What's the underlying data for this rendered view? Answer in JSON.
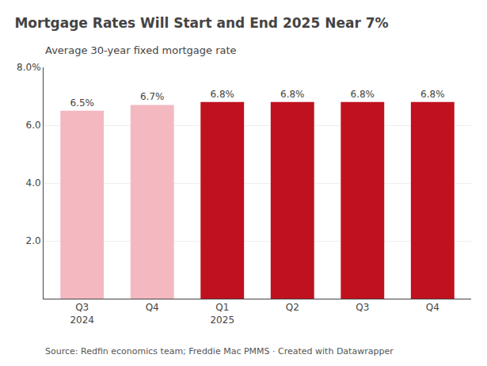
{
  "chart_data": {
    "type": "bar",
    "title": "Mortgage Rates Will Start and End 2025 Near 7%",
    "subtitle": "Average 30-year fixed mortgage rate",
    "categories": [
      "Q3\n2024",
      "Q4",
      "Q1\n2025",
      "Q2",
      "Q3",
      "Q4"
    ],
    "values": [
      6.5,
      6.7,
      6.8,
      6.8,
      6.8,
      6.8
    ],
    "value_labels": [
      "6.5%",
      "6.7%",
      "6.8%",
      "6.8%",
      "6.8%",
      "6.8%"
    ],
    "data_labels": true,
    "colors": [
      "#f4b8c1",
      "#f4b8c1",
      "#c0111f",
      "#c0111f",
      "#c0111f",
      "#c0111f"
    ],
    "ylim": [
      0,
      8.0
    ],
    "yticks": [
      {
        "value": 2.0,
        "label": "2.0"
      },
      {
        "value": 4.0,
        "label": "4.0"
      },
      {
        "value": 6.0,
        "label": "6.0"
      },
      {
        "value": 8.0,
        "label": "8.0%"
      }
    ],
    "grid": true,
    "annotations": [
      "Source: Redfin economics team; Freddie Mac PMMS · Created with Datawrapper"
    ]
  }
}
